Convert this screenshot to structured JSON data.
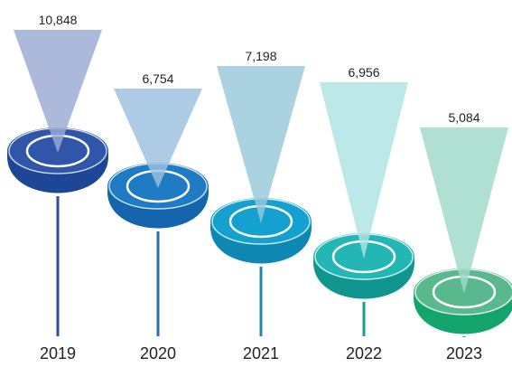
{
  "chart_data": {
    "type": "bar",
    "title": "",
    "xlabel": "",
    "ylabel": "",
    "categories": [
      "2019",
      "2020",
      "2021",
      "2022",
      "2023"
    ],
    "values": [
      10848,
      6754,
      7198,
      6956,
      5084
    ],
    "value_labels": [
      "10,848",
      "6,754",
      "7,198",
      "6,956",
      "5,084"
    ],
    "colors": {
      "2019": {
        "cone": "#9aa9d3",
        "top": "#2f56a8",
        "bowl": "#1e4697",
        "stem": "#2a4f9e"
      },
      "2020": {
        "cone": "#9cc0e0",
        "top": "#1f7bc4",
        "bowl": "#1565ad",
        "stem": "#2a6eb5"
      },
      "2021": {
        "cone": "#97c8da",
        "top": "#14a1cf",
        "bowl": "#0f87b3",
        "stem": "#1e88a8"
      },
      "2022": {
        "cone": "#aee3e5",
        "top": "#23b6b4",
        "bowl": "#11958f",
        "stem": "#1e9d96"
      },
      "2023": {
        "cone": "#9fd9c7",
        "top": "#59b88e",
        "bowl": "#13a56c",
        "stem": "#18a070"
      }
    }
  }
}
